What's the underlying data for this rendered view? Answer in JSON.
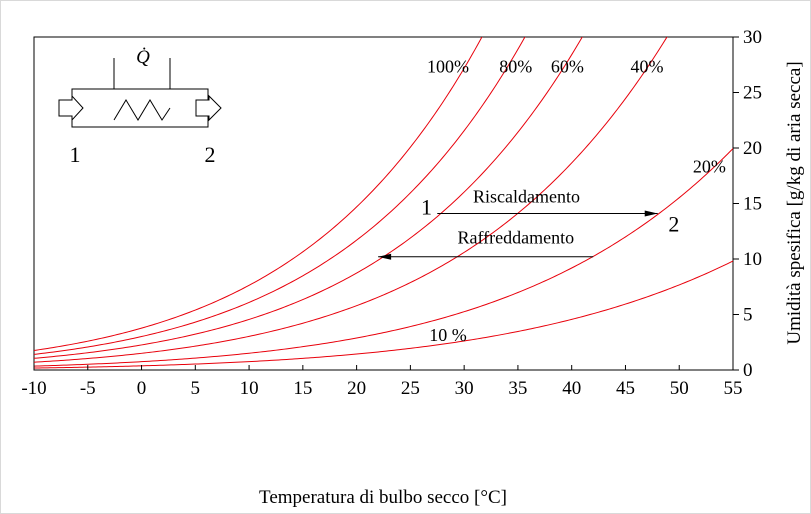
{
  "chart_data": {
    "type": "line",
    "xlabel": "Temperatura di bulbo secco [°C]",
    "ylabel": "Umidità spesifica [g/kg di aria secca]",
    "xlim": [
      -10,
      55
    ],
    "ylim": [
      0,
      30
    ],
    "xticks": [
      -10,
      -5,
      0,
      5,
      10,
      15,
      20,
      25,
      30,
      35,
      40,
      45,
      50,
      55
    ],
    "yticks": [
      0,
      5,
      10,
      15,
      20,
      25,
      30
    ],
    "grid": false,
    "line_color": "#e8000b",
    "series": [
      {
        "name": "100%",
        "label": "100%",
        "rh": 1.0,
        "label_at": [
          28.5,
          26.8
        ]
      },
      {
        "name": "80%",
        "label": "80%",
        "rh": 0.8,
        "label_at": [
          34.8,
          26.8
        ]
      },
      {
        "name": "60%",
        "label": "60%",
        "rh": 0.6,
        "label_at": [
          39.6,
          26.8
        ]
      },
      {
        "name": "40%",
        "label": "40%",
        "rh": 0.4,
        "label_at": [
          47.0,
          26.8
        ]
      },
      {
        "name": "20%",
        "label": "20%",
        "rh": 0.2,
        "label_at": [
          52.8,
          17.8
        ]
      },
      {
        "name": "10 %",
        "label": "10 %",
        "rh": 0.1,
        "label_at": [
          28.5,
          2.6
        ]
      }
    ],
    "annotations": [
      {
        "text": "Riscaldamento",
        "x_from": 27.5,
        "x_to": 48,
        "y": 14.1,
        "label_at": [
          35.8,
          15.1
        ],
        "arrow_at": "end"
      },
      {
        "text": "Raffreddamento",
        "x_from": 22,
        "x_to": 42,
        "y": 10.2,
        "label_at": [
          34.8,
          11.4
        ],
        "arrow_at": "start"
      }
    ],
    "points": [
      {
        "label": "1",
        "at": [
          26.5,
          14.0
        ]
      },
      {
        "label": "2",
        "at": [
          49.5,
          12.5
        ]
      }
    ]
  },
  "schematic": {
    "heat_symbol": "Q̇",
    "inlet_label": "1",
    "outlet_label": "2"
  }
}
